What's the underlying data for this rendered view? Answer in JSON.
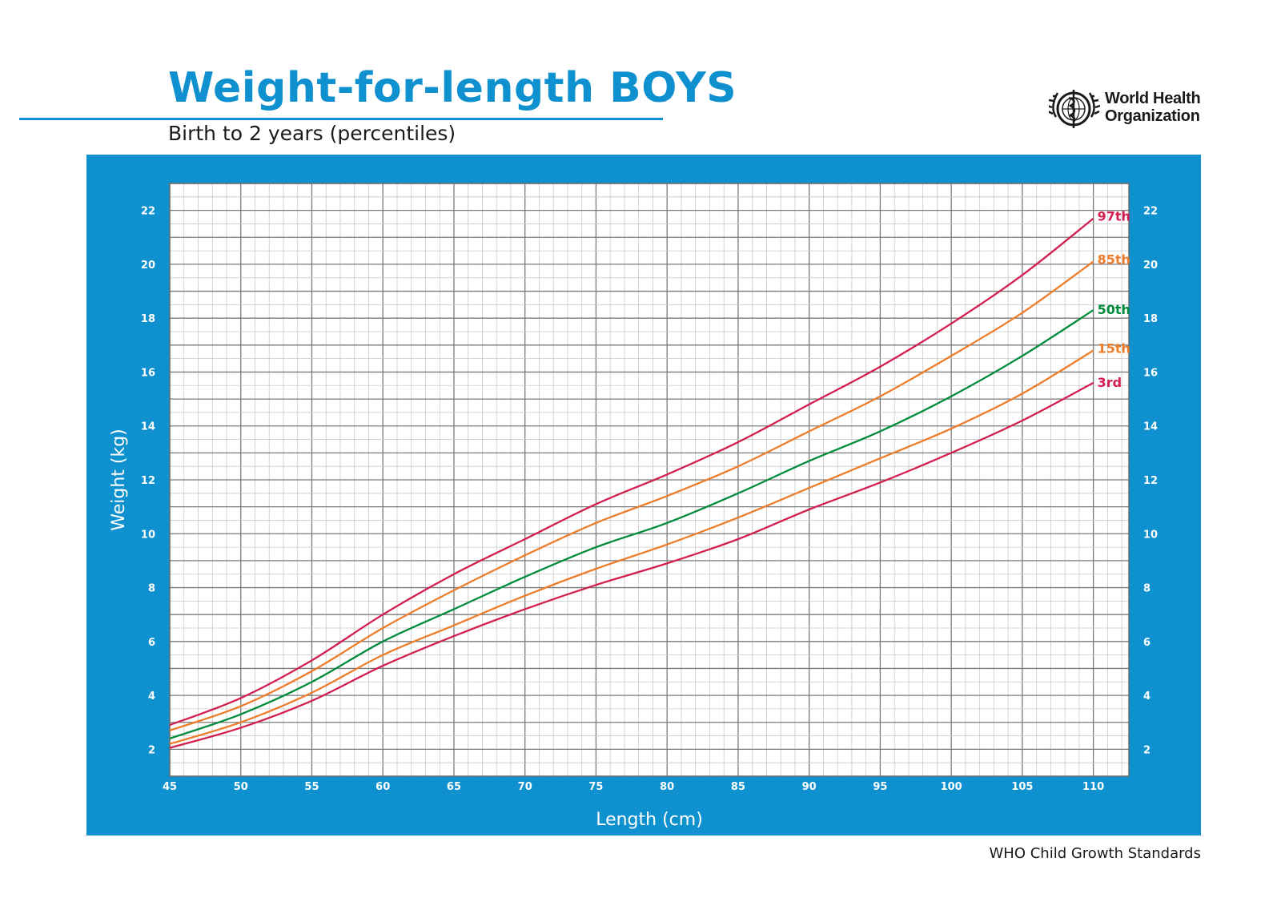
{
  "header": {
    "title": "Weight-for-length BOYS",
    "subtitle": "Birth to 2 years (percentiles)",
    "logo_line1": "World Health",
    "logo_line2": "Organization",
    "logo_icon": "who-emblem-icon"
  },
  "footer": {
    "text": "WHO Child Growth Standards"
  },
  "colors": {
    "brand_blue": "#0f91cf",
    "p97": "#d21f4f",
    "p85": "#ed7d2a",
    "p50": "#008c3c",
    "p15": "#ed7d2a",
    "p3": "#d21f4f"
  },
  "chart_data": {
    "type": "line",
    "xlabel": "Length (cm)",
    "ylabel": "Weight (kg)",
    "xlim": [
      45,
      112.5
    ],
    "ylim": [
      1,
      23
    ],
    "x_ticks": [
      45,
      50,
      55,
      60,
      65,
      70,
      75,
      80,
      85,
      90,
      95,
      100,
      105,
      110
    ],
    "y_ticks": [
      2,
      4,
      6,
      8,
      10,
      12,
      14,
      16,
      18,
      20,
      22
    ],
    "grid": true,
    "legend": "labels at right end of each curve",
    "x": [
      45,
      50,
      55,
      60,
      65,
      70,
      75,
      80,
      85,
      90,
      95,
      100,
      105,
      110
    ],
    "series": [
      {
        "name": "97th",
        "color": "#d21f4f",
        "values": [
          2.9,
          3.9,
          5.3,
          7.0,
          8.5,
          9.8,
          11.1,
          12.2,
          13.4,
          14.8,
          16.2,
          17.8,
          19.6,
          21.7
        ]
      },
      {
        "name": "85th",
        "color": "#ed7d2a",
        "values": [
          2.7,
          3.6,
          4.9,
          6.5,
          7.9,
          9.2,
          10.4,
          11.4,
          12.5,
          13.8,
          15.1,
          16.6,
          18.2,
          20.1
        ]
      },
      {
        "name": "50th",
        "color": "#008c3c",
        "values": [
          2.4,
          3.3,
          4.5,
          6.0,
          7.2,
          8.4,
          9.5,
          10.4,
          11.5,
          12.7,
          13.8,
          15.1,
          16.6,
          18.3
        ]
      },
      {
        "name": "15th",
        "color": "#ed7d2a",
        "values": [
          2.2,
          3.0,
          4.1,
          5.5,
          6.6,
          7.7,
          8.7,
          9.6,
          10.6,
          11.7,
          12.8,
          13.9,
          15.2,
          16.8
        ]
      },
      {
        "name": "3rd",
        "color": "#d21f4f",
        "values": [
          2.05,
          2.8,
          3.8,
          5.1,
          6.2,
          7.2,
          8.1,
          8.9,
          9.8,
          10.9,
          11.9,
          13.0,
          14.2,
          15.6
        ]
      }
    ]
  }
}
